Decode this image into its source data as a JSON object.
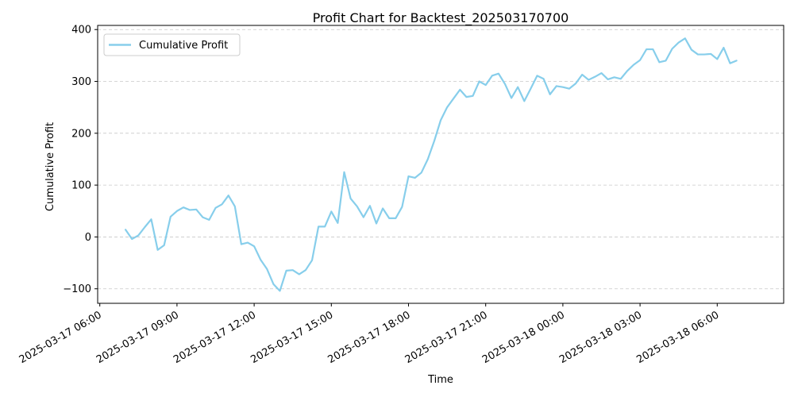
{
  "chart_data": {
    "type": "line",
    "title": "Profit Chart for Backtest_202503170700",
    "xlabel": "Time",
    "ylabel": "Cumulative Profit",
    "x_unit": "datetime",
    "xlim": [
      "2025-03-17 05:55",
      "2025-03-18 08:35"
    ],
    "ylim": [
      -128,
      408
    ],
    "x_ticks": [
      {
        "value": "2025-03-17 06:00",
        "label": "2025-03-17 06:00"
      },
      {
        "value": "2025-03-17 09:00",
        "label": "2025-03-17 09:00"
      },
      {
        "value": "2025-03-17 12:00",
        "label": "2025-03-17 12:00"
      },
      {
        "value": "2025-03-17 15:00",
        "label": "2025-03-17 15:00"
      },
      {
        "value": "2025-03-17 18:00",
        "label": "2025-03-17 18:00"
      },
      {
        "value": "2025-03-17 21:00",
        "label": "2025-03-17 21:00"
      },
      {
        "value": "2025-03-18 00:00",
        "label": "2025-03-18 00:00"
      },
      {
        "value": "2025-03-18 03:00",
        "label": "2025-03-18 03:00"
      },
      {
        "value": "2025-03-18 06:00",
        "label": "2025-03-18 06:00"
      }
    ],
    "y_ticks": [
      {
        "value": -100,
        "label": "−100"
      },
      {
        "value": 0,
        "label": "0"
      },
      {
        "value": 100,
        "label": "100"
      },
      {
        "value": 200,
        "label": "200"
      },
      {
        "value": 300,
        "label": "300"
      },
      {
        "value": 400,
        "label": "400"
      }
    ],
    "grid": "y-dashed",
    "legend_position": "top-left",
    "series": [
      {
        "name": "Cumulative Profit",
        "color": "#87CEEB",
        "x": [
          "2025-03-17 07:00",
          "2025-03-17 07:15",
          "2025-03-17 07:30",
          "2025-03-17 07:45",
          "2025-03-17 08:00",
          "2025-03-17 08:15",
          "2025-03-17 08:30",
          "2025-03-17 08:45",
          "2025-03-17 09:00",
          "2025-03-17 09:15",
          "2025-03-17 09:30",
          "2025-03-17 09:45",
          "2025-03-17 10:00",
          "2025-03-17 10:15",
          "2025-03-17 10:30",
          "2025-03-17 10:45",
          "2025-03-17 11:00",
          "2025-03-17 11:15",
          "2025-03-17 11:30",
          "2025-03-17 11:45",
          "2025-03-17 12:00",
          "2025-03-17 12:15",
          "2025-03-17 12:30",
          "2025-03-17 12:45",
          "2025-03-17 13:00",
          "2025-03-17 13:15",
          "2025-03-17 13:30",
          "2025-03-17 13:45",
          "2025-03-17 14:00",
          "2025-03-17 14:15",
          "2025-03-17 14:30",
          "2025-03-17 14:45",
          "2025-03-17 15:00",
          "2025-03-17 15:15",
          "2025-03-17 15:30",
          "2025-03-17 15:45",
          "2025-03-17 16:00",
          "2025-03-17 16:15",
          "2025-03-17 16:30",
          "2025-03-17 16:45",
          "2025-03-17 17:00",
          "2025-03-17 17:15",
          "2025-03-17 17:30",
          "2025-03-17 17:45",
          "2025-03-17 18:00",
          "2025-03-17 18:15",
          "2025-03-17 18:30",
          "2025-03-17 18:45",
          "2025-03-17 19:00",
          "2025-03-17 19:15",
          "2025-03-17 19:30",
          "2025-03-17 19:45",
          "2025-03-17 20:00",
          "2025-03-17 20:15",
          "2025-03-17 20:30",
          "2025-03-17 20:45",
          "2025-03-17 21:00",
          "2025-03-17 21:15",
          "2025-03-17 21:30",
          "2025-03-17 21:45",
          "2025-03-17 22:00",
          "2025-03-17 22:15",
          "2025-03-17 22:30",
          "2025-03-17 22:45",
          "2025-03-17 23:00",
          "2025-03-17 23:15",
          "2025-03-17 23:30",
          "2025-03-17 23:45",
          "2025-03-18 00:00",
          "2025-03-18 00:15",
          "2025-03-18 00:30",
          "2025-03-18 00:45",
          "2025-03-18 01:00",
          "2025-03-18 01:15",
          "2025-03-18 01:30",
          "2025-03-18 01:45",
          "2025-03-18 02:00",
          "2025-03-18 02:15",
          "2025-03-18 02:30",
          "2025-03-18 02:45",
          "2025-03-18 03:00",
          "2025-03-18 03:15",
          "2025-03-18 03:30",
          "2025-03-18 03:45",
          "2025-03-18 04:00",
          "2025-03-18 04:15",
          "2025-03-18 04:30",
          "2025-03-18 04:45",
          "2025-03-18 05:00",
          "2025-03-18 05:15",
          "2025-03-18 05:30",
          "2025-03-18 05:45",
          "2025-03-18 06:00",
          "2025-03-18 06:15",
          "2025-03-18 06:30",
          "2025-03-18 06:45"
        ],
        "values": [
          14,
          -4,
          3,
          19,
          34,
          -25,
          -16,
          39,
          50,
          57,
          52,
          53,
          38,
          33,
          56,
          63,
          80,
          59,
          -14,
          -11,
          -18,
          -44,
          -62,
          -91,
          -104,
          -65,
          -64,
          -72,
          -64,
          -45,
          20,
          20,
          49,
          27,
          125,
          74,
          59,
          38,
          60,
          26,
          55,
          36,
          36,
          58,
          117,
          114,
          124,
          150,
          185,
          225,
          250,
          267,
          284,
          270,
          272,
          300,
          293,
          311,
          315,
          295,
          268,
          289,
          262,
          286,
          311,
          305,
          275,
          291,
          289,
          286,
          296,
          313,
          303,
          309,
          316,
          304,
          308,
          305,
          320,
          332,
          341,
          362,
          362,
          337,
          340,
          363,
          375,
          383,
          361,
          352,
          352,
          353,
          343,
          365,
          335,
          340
        ]
      }
    ]
  }
}
